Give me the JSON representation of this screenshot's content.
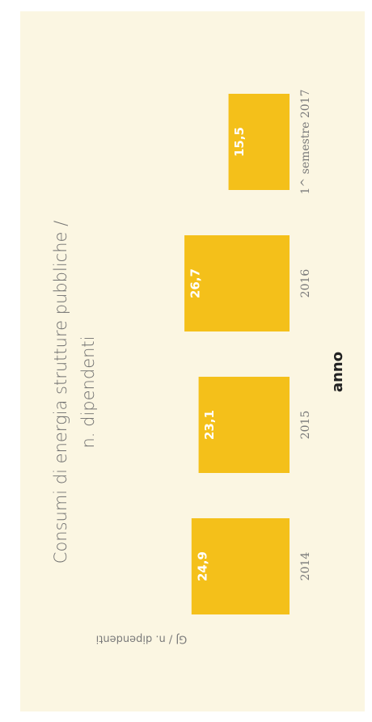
{
  "chart_data": {
    "type": "bar",
    "title": [
      "Consumi di energia strutture pubbliche /",
      "n. dipendenti"
    ],
    "x_label": "anno",
    "y_label": "GJ / n. dipendenti",
    "categories": [
      "2014",
      "2015",
      "2016",
      "1^ semestre 2017"
    ],
    "values": [
      24.9,
      23.1,
      26.7,
      15.5
    ],
    "value_labels": [
      "24,9",
      "23,1",
      "26,7",
      "15,5"
    ],
    "color": "#f4c01a",
    "ylim": [
      0,
      30
    ]
  }
}
